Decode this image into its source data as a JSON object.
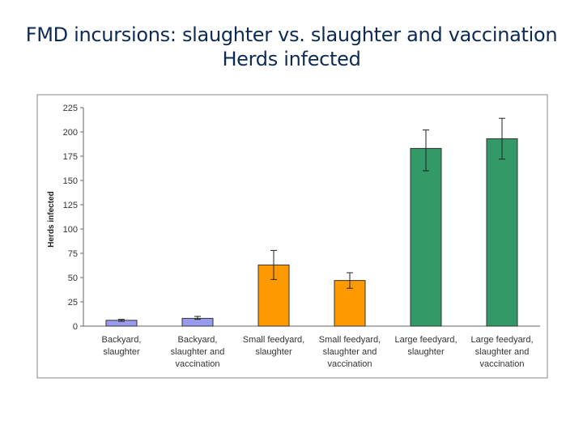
{
  "title": {
    "line1": "FMD incursions: slaughter vs. slaughter and vaccination",
    "line2": "Herds infected"
  },
  "chart_data": {
    "type": "bar",
    "ylabel": "Herds infected",
    "xlabel": "",
    "ylim": [
      0,
      225
    ],
    "yticks": [
      0,
      25,
      50,
      75,
      100,
      125,
      150,
      175,
      200,
      225
    ],
    "grid": false,
    "categories": [
      [
        "Backyard,",
        "slaughter"
      ],
      [
        "Backyard,",
        "slaughter and",
        "vaccination"
      ],
      [
        "Small feedyard,",
        "slaughter"
      ],
      [
        "Small feedyard,",
        "slaughter and",
        "vaccination"
      ],
      [
        "Large feedyard,",
        "slaughter"
      ],
      [
        "Large feedyard,",
        "slaughter and",
        "vaccination"
      ]
    ],
    "values": [
      6,
      8,
      63,
      47,
      183,
      193
    ],
    "error_low": [
      5,
      7,
      48,
      39,
      160,
      172
    ],
    "error_high": [
      7,
      10,
      78,
      55,
      202,
      214
    ],
    "colors": [
      "#9999ee",
      "#9999ee",
      "#ff9900",
      "#ff9900",
      "#339966",
      "#339966"
    ]
  }
}
